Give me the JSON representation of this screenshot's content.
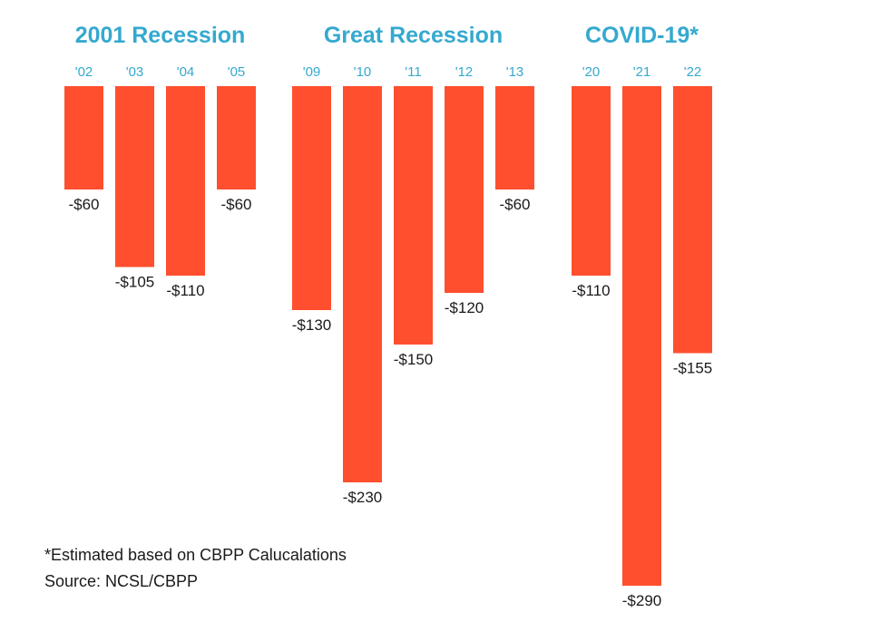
{
  "colors": {
    "bar": "#ff4f2e",
    "group_title": "#35a9cf",
    "year_label": "#35a9cf",
    "value_label": "#1a1a1a"
  },
  "chart_data": {
    "type": "bar",
    "ylim": [
      -290,
      0
    ],
    "groups": [
      {
        "title": "2001 Recession",
        "categories": [
          "'02",
          "'03",
          "'04",
          "'05"
        ],
        "values": [
          -60,
          -105,
          -110,
          -60
        ],
        "labels": [
          "-$60",
          "-$105",
          "-$110",
          "-$60"
        ]
      },
      {
        "title": "Great Recession",
        "categories": [
          "'09",
          "'10",
          "'11",
          "'12",
          "'13"
        ],
        "values": [
          -130,
          -230,
          -150,
          -120,
          -60
        ],
        "labels": [
          "-$130",
          "-$230",
          "-$150",
          "-$120",
          "-$60"
        ]
      },
      {
        "title": "COVID-19*",
        "categories": [
          "'20",
          "'21",
          "'22"
        ],
        "values": [
          -110,
          -290,
          -155
        ],
        "labels": [
          "-$110",
          "-$290",
          "-$155"
        ]
      }
    ]
  },
  "footnotes": {
    "estimate": "*Estimated based on CBPP Calucalations",
    "source": "Source: NCSL/CBPP"
  }
}
